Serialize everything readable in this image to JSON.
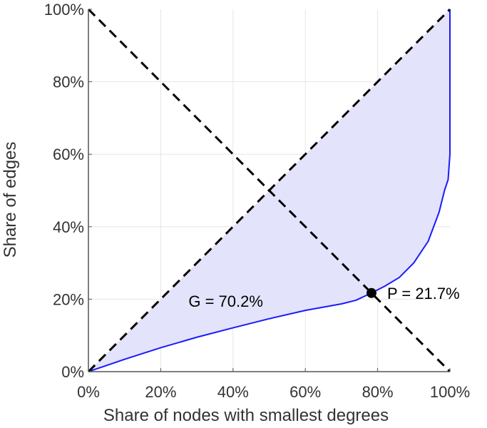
{
  "chart_data": {
    "type": "line",
    "title": "",
    "xlabel": "Share of nodes with smallest degrees",
    "ylabel": "Share of edges",
    "xlim": [
      0,
      100
    ],
    "ylim": [
      0,
      100
    ],
    "x_ticks": [
      "0%",
      "20%",
      "40%",
      "60%",
      "80%",
      "100%"
    ],
    "y_ticks": [
      "0%",
      "20%",
      "40%",
      "60%",
      "80%",
      "100%"
    ],
    "grid": true,
    "series": [
      {
        "kind": "lorenz-curve",
        "color": "#1a1aff",
        "fill": "#e3e4fb",
        "x": [
          0,
          10,
          20,
          30,
          40,
          50,
          60,
          70,
          74,
          78.3,
          82,
          86,
          90,
          94,
          97,
          98.5,
          99.5,
          100,
          100
        ],
        "y": [
          0,
          3.4,
          6.6,
          9.5,
          12.1,
          14.6,
          16.9,
          18.7,
          19.7,
          21.7,
          23.6,
          26.0,
          30.0,
          36.0,
          44.0,
          50.0,
          53.0,
          60.0,
          100
        ]
      },
      {
        "kind": "equality-line",
        "color": "#000000",
        "dashed": true,
        "x": [
          0,
          100
        ],
        "y": [
          0,
          100
        ]
      },
      {
        "kind": "anti-diagonal",
        "color": "#000000",
        "dashed": true,
        "x": [
          0,
          100
        ],
        "y": [
          100,
          0
        ]
      }
    ],
    "points": [
      {
        "label": "P = 21.7%",
        "x": 78.3,
        "y": 21.7
      }
    ],
    "annotations": [
      {
        "label": "G = 70.2%",
        "x": 38,
        "y": 19.5
      }
    ]
  }
}
